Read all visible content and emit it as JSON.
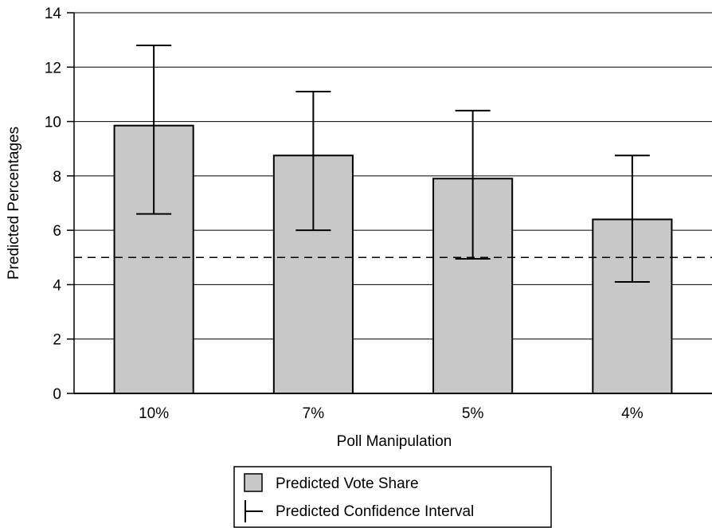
{
  "chart_data": {
    "type": "bar",
    "title": "",
    "xlabel": "Poll Manipulation",
    "ylabel": "Predicted Percentages",
    "ylim": [
      0,
      14
    ],
    "yticks": [
      0,
      2,
      4,
      6,
      8,
      10,
      12,
      14
    ],
    "categories": [
      "10%",
      "7%",
      "5%",
      "4%"
    ],
    "series": [
      {
        "name": "Predicted Vote Share",
        "values": [
          9.85,
          8.75,
          7.9,
          6.4
        ],
        "color": "#c8c8c8"
      }
    ],
    "error_bars": {
      "name": "Predicted Confidence Interval",
      "lower": [
        6.6,
        6.0,
        4.95,
        4.1
      ],
      "upper": [
        12.8,
        11.1,
        10.4,
        8.75
      ]
    },
    "reference_line": {
      "value": 5,
      "style": "dashed"
    },
    "grid": true,
    "legend_position": "bottom-center"
  }
}
